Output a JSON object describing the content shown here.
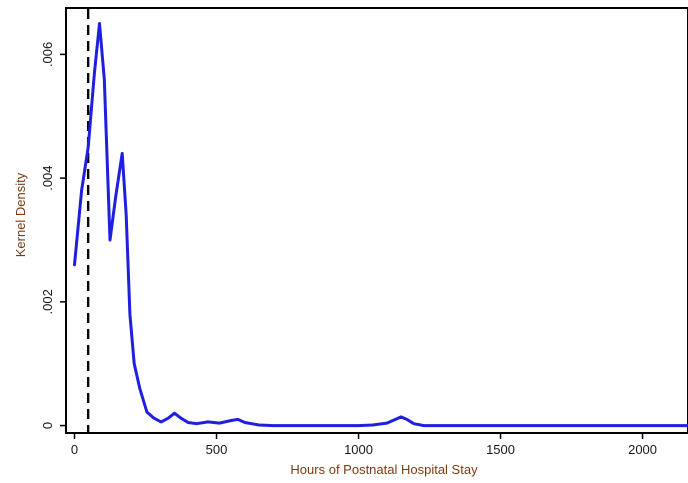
{
  "chart_data": {
    "type": "line",
    "title": "",
    "xlabel": "Hours of Postnatal Hospital Stay",
    "ylabel": "Kernel Density",
    "xlim": [
      -30,
      2160
    ],
    "ylim": [
      -0.00012,
      0.00675
    ],
    "x_ticks": [
      {
        "value": 0,
        "label": "0"
      },
      {
        "value": 500,
        "label": "500"
      },
      {
        "value": 1000,
        "label": "1000"
      },
      {
        "value": 1500,
        "label": "1500"
      },
      {
        "value": 2000,
        "label": "2000"
      }
    ],
    "y_ticks": [
      {
        "value": 0,
        "label": "0"
      },
      {
        "value": 0.002,
        "label": ".002"
      },
      {
        "value": 0.004,
        "label": ".004"
      },
      {
        "value": 0.006,
        "label": ".006"
      }
    ],
    "grid": false,
    "legend": false,
    "series_color": "#1f1fe0",
    "reference_line": {
      "x": 48,
      "style": "dashed",
      "color": "#000000"
    },
    "series": [
      {
        "x": [
          0,
          25,
          48,
          70,
          88,
          105,
          125,
          145,
          168,
          182,
          195,
          210,
          230,
          255,
          280,
          305,
          330,
          352,
          375,
          400,
          430,
          470,
          510,
          550,
          575,
          600,
          650,
          700,
          800,
          900,
          1000,
          1050,
          1100,
          1130,
          1150,
          1170,
          1195,
          1230,
          1300,
          1400,
          1500,
          1600,
          1800,
          2000,
          2160
        ],
        "y": [
          0.0026,
          0.0038,
          0.0045,
          0.0057,
          0.0065,
          0.0056,
          0.003,
          0.0037,
          0.0044,
          0.0034,
          0.0018,
          0.001,
          0.0006,
          0.00022,
          0.00012,
          6e-05,
          0.00012,
          0.0002,
          0.00012,
          5e-05,
          3e-05,
          6e-05,
          4e-05,
          8e-05,
          0.0001,
          5e-05,
          1e-05,
          0.0,
          0.0,
          0.0,
          0.0,
          1e-05,
          4e-05,
          0.0001,
          0.00014,
          0.0001,
          3e-05,
          0.0,
          0.0,
          0.0,
          0.0,
          0.0,
          0.0,
          0.0,
          0.0
        ]
      }
    ]
  }
}
